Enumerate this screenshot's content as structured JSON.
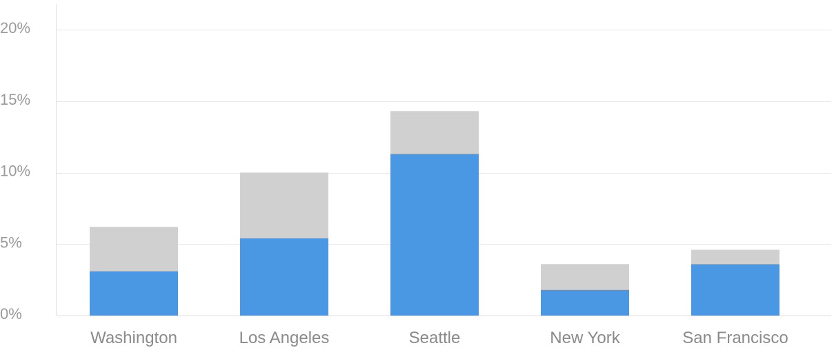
{
  "chart_data": {
    "type": "bar",
    "stacked": true,
    "categories": [
      "Washington",
      "Los Angeles",
      "Seattle",
      "New York",
      "San Francisco"
    ],
    "series": [
      {
        "values": [
          3.1,
          5.4,
          11.3,
          1.8,
          3.6
        ],
        "color": "#4a98e3"
      },
      {
        "values": [
          3.1,
          4.6,
          3.0,
          1.8,
          1.0
        ],
        "color": "#d0d0d0"
      }
    ],
    "totals": [
      6.2,
      10.0,
      14.3,
      3.6,
      4.6
    ],
    "ylim": [
      0,
      20
    ],
    "yticks": [
      0,
      5,
      10,
      15,
      20
    ],
    "ytick_labels": [
      "0%",
      "5%",
      "10%",
      "15%",
      "20%"
    ],
    "grid": true,
    "title": "",
    "xlabel": "",
    "ylabel": ""
  }
}
